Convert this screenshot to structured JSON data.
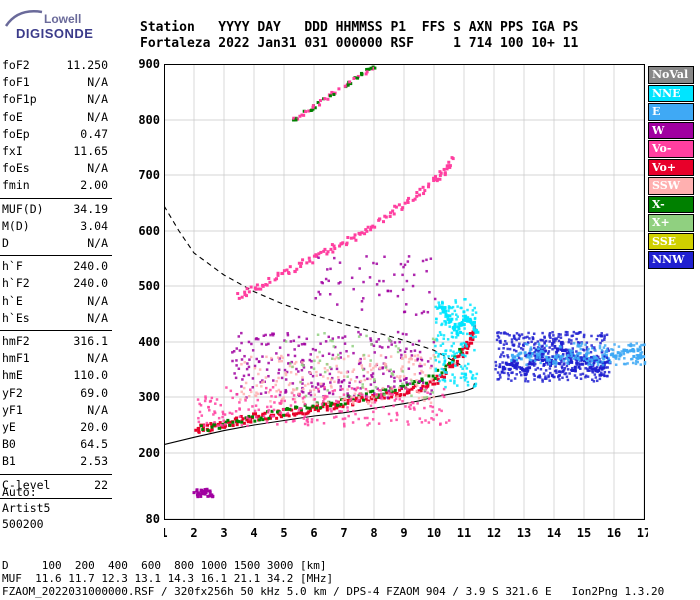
{
  "logo": {
    "line1": "Lowell",
    "line2": "DIGISONDE"
  },
  "header": {
    "line1": "Station   YYYY DAY   DDD HHMMSS P1  FFS S AXN PPS IGA PS",
    "line2": "Fortaleza 2022 Jan31 031 000000 RSF     1 714 100 10+ 11"
  },
  "params": [
    {
      "label": "foF2",
      "value": "11.250"
    },
    {
      "label": "foF1",
      "value": "N/A"
    },
    {
      "label": "foF1p",
      "value": "N/A"
    },
    {
      "label": "foE",
      "value": "N/A"
    },
    {
      "label": "foEp",
      "value": "0.47"
    },
    {
      "label": "fxI",
      "value": "11.65"
    },
    {
      "label": "foEs",
      "value": "N/A"
    },
    {
      "label": "fmin",
      "value": "2.00"
    },
    {
      "label": "MUF(D)",
      "value": "34.19"
    },
    {
      "label": "M(D)",
      "value": "3.04"
    },
    {
      "label": "D",
      "value": "N/A"
    },
    {
      "label": "h`F",
      "value": "240.0"
    },
    {
      "label": "h`F2",
      "value": "240.0"
    },
    {
      "label": "h`E",
      "value": "N/A"
    },
    {
      "label": "h`Es",
      "value": "N/A"
    },
    {
      "label": "hmF2",
      "value": "316.1"
    },
    {
      "label": "hmF1",
      "value": "N/A"
    },
    {
      "label": "hmE",
      "value": "110.0"
    },
    {
      "label": "yF2",
      "value": "69.0"
    },
    {
      "label": "yF1",
      "value": "N/A"
    },
    {
      "label": "yE",
      "value": "20.0"
    },
    {
      "label": "B0",
      "value": "64.5"
    },
    {
      "label": "B1",
      "value": "2.53"
    },
    {
      "label": "C-level",
      "value": "22"
    }
  ],
  "auto": {
    "line1": "Auto:",
    "line2": "Artist5",
    "line3": "500200"
  },
  "legend": [
    {
      "label": "NoVal",
      "color": "#888888",
      "text": "#ffffff"
    },
    {
      "label": "NNE",
      "color": "#00e5ff",
      "text": "#ffffff"
    },
    {
      "label": "E",
      "color": "#3fa9f5",
      "text": "#ffffff"
    },
    {
      "label": "W",
      "color": "#a000a0",
      "text": "#ffffff"
    },
    {
      "label": "Vo-",
      "color": "#ff3fa0",
      "text": "#ffffff"
    },
    {
      "label": "Vo+",
      "color": "#e8002a",
      "text": "#ffffff"
    },
    {
      "label": "SSW",
      "color": "#ffb0b0",
      "text": "#ffffff"
    },
    {
      "label": "X-",
      "color": "#008000",
      "text": "#ffffff"
    },
    {
      "label": "X+",
      "color": "#90d080",
      "text": "#ffffff"
    },
    {
      "label": "SSE",
      "color": "#d0d000",
      "text": "#ffffff"
    },
    {
      "label": "NNW",
      "color": "#2020d0",
      "text": "#ffffff"
    }
  ],
  "footer": {
    "line1": "D     100  200  400  600  800 1000 1500 3000 [km]",
    "line2": "MUF  11.6 11.7 12.3 13.1 14.3 16.1 21.1 34.2 [MHz]",
    "line3": "FZAOM_2022031000000.RSF / 320fx256h 50 kHz 5.0 km / DPS-4 FZAOM 904 / 3.9 S 321.6 E   Ion2Png 1.3.20"
  },
  "chart_data": {
    "type": "scatter",
    "title": "",
    "xlabel": "",
    "ylabel": "",
    "xlim": [
      1,
      17
    ],
    "ylim": [
      80,
      900
    ],
    "x_ticks": [
      "1",
      "2",
      "3",
      "4",
      "5",
      "6",
      "7",
      "8",
      "9",
      "10",
      "11",
      "12",
      "13",
      "14",
      "15",
      "16",
      "17"
    ],
    "y_ticks": [
      "80",
      "200",
      "300",
      "400",
      "500",
      "600",
      "700",
      "800",
      "900"
    ],
    "grid": true,
    "legend_position": "right",
    "series": [
      {
        "name": "Vo+",
        "color": "#e8002a",
        "x": [
          2.0,
          2.4,
          2.8,
          3.2,
          3.6,
          4.0,
          4.5,
          5.0,
          5.5,
          6.0,
          6.5,
          7.0,
          7.5,
          8.0,
          8.5,
          9.0,
          9.5,
          10.0,
          10.4,
          10.8,
          11.0,
          11.2,
          11.3
        ],
        "y": [
          243,
          248,
          252,
          257,
          262,
          266,
          270,
          274,
          278,
          283,
          287,
          293,
          298,
          304,
          308,
          313,
          320,
          330,
          350,
          375,
          390,
          410,
          430
        ]
      },
      {
        "name": "Vo-",
        "color": "#ff3fa0",
        "x": [
          3.4,
          4.0,
          4.6,
          5.2,
          5.8,
          6.4,
          7.0,
          7.6,
          8.2,
          8.8,
          9.4,
          10.0,
          10.3,
          10.6
        ],
        "y": [
          482,
          498,
          515,
          532,
          550,
          567,
          583,
          600,
          620,
          645,
          668,
          695,
          710,
          730
        ]
      },
      {
        "name": "X-",
        "color": "#008000",
        "x": [
          2.2,
          3.0,
          4.0,
          5.0,
          6.0,
          7.0,
          8.0,
          9.0,
          10.0,
          11.0
        ],
        "y": [
          246,
          254,
          265,
          276,
          286,
          297,
          308,
          318,
          340,
          395
        ]
      },
      {
        "name": "NNE",
        "color": "#00e5ff",
        "x": [
          10.2,
          10.4,
          10.6,
          10.8,
          11.0,
          11.2,
          11.4
        ],
        "y": [
          470,
          455,
          430,
          420,
          450,
          440,
          420
        ]
      },
      {
        "name": "NNW",
        "color": "#2020d0",
        "x": [
          12.2,
          12.6,
          13.0,
          13.4,
          13.8,
          14.2,
          14.6,
          15.0,
          15.4,
          15.8
        ],
        "y": [
          350,
          365,
          345,
          380,
          360,
          400,
          355,
          375,
          345,
          365
        ]
      },
      {
        "name": "E",
        "color": "#3fa9f5",
        "x": [
          12.5,
          13.0,
          13.5,
          14.0,
          14.5,
          15.0,
          15.5,
          16.0,
          16.5,
          17.0
        ],
        "y": [
          375,
          380,
          385,
          370,
          380,
          375,
          370,
          380,
          385,
          378
        ]
      },
      {
        "name": "W",
        "color": "#a000a0",
        "x": [
          2.0,
          2.2,
          2.4,
          2.6
        ],
        "y": [
          130,
          130,
          130,
          130
        ]
      }
    ]
  }
}
